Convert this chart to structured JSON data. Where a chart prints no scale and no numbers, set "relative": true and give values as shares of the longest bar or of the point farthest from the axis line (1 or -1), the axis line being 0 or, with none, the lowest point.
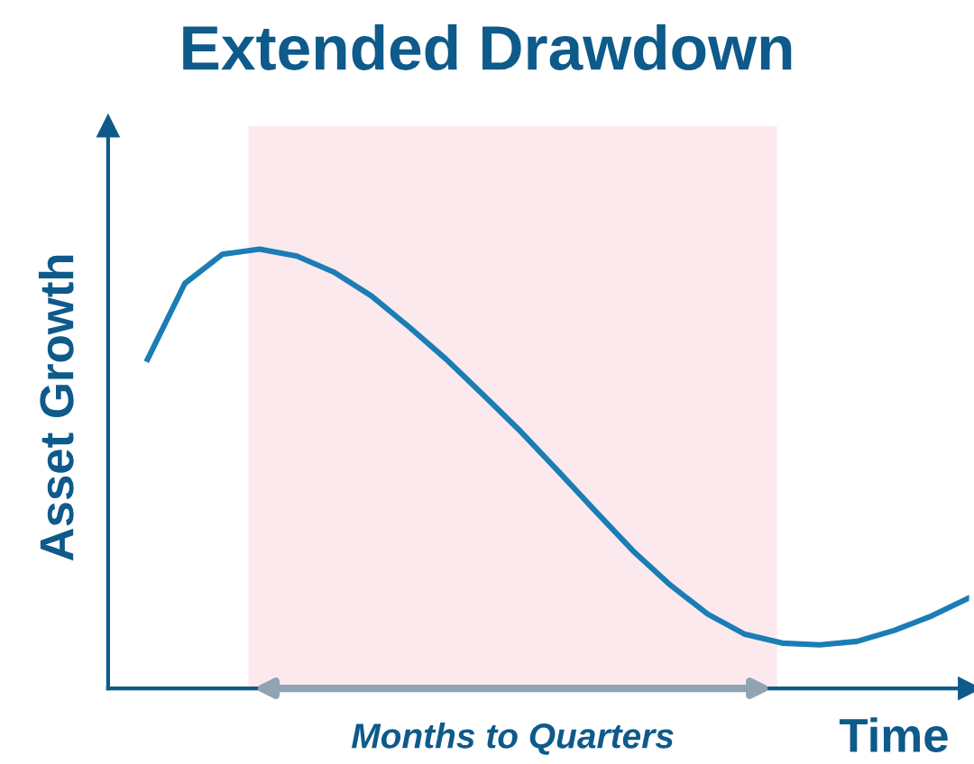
{
  "chart_data": {
    "type": "line",
    "title": "Extended Drawdown",
    "xlabel": "Time",
    "ylabel": "Asset Growth",
    "relative": true,
    "categories": [
      null,
      null,
      null,
      null,
      null,
      null,
      null,
      null,
      null,
      null,
      null,
      null,
      null,
      null,
      null,
      null,
      null,
      null,
      null,
      null,
      null,
      null,
      null
    ],
    "series": [
      {
        "color": "#1a7db5",
        "values": [
          0.749,
          0.922,
          0.988,
          1.0,
          0.984,
          0.947,
          0.893,
          0.823,
          0.749,
          0.667,
          0.584,
          0.494,
          0.403,
          0.313,
          0.235,
          0.169,
          0.123,
          0.103,
          0.099,
          0.107,
          0.132,
          0.165,
          0.206
        ]
      }
    ],
    "annotations": [
      "Months to Quarters"
    ],
    "legend": false,
    "marker": "none",
    "line_style": "solid"
  }
}
